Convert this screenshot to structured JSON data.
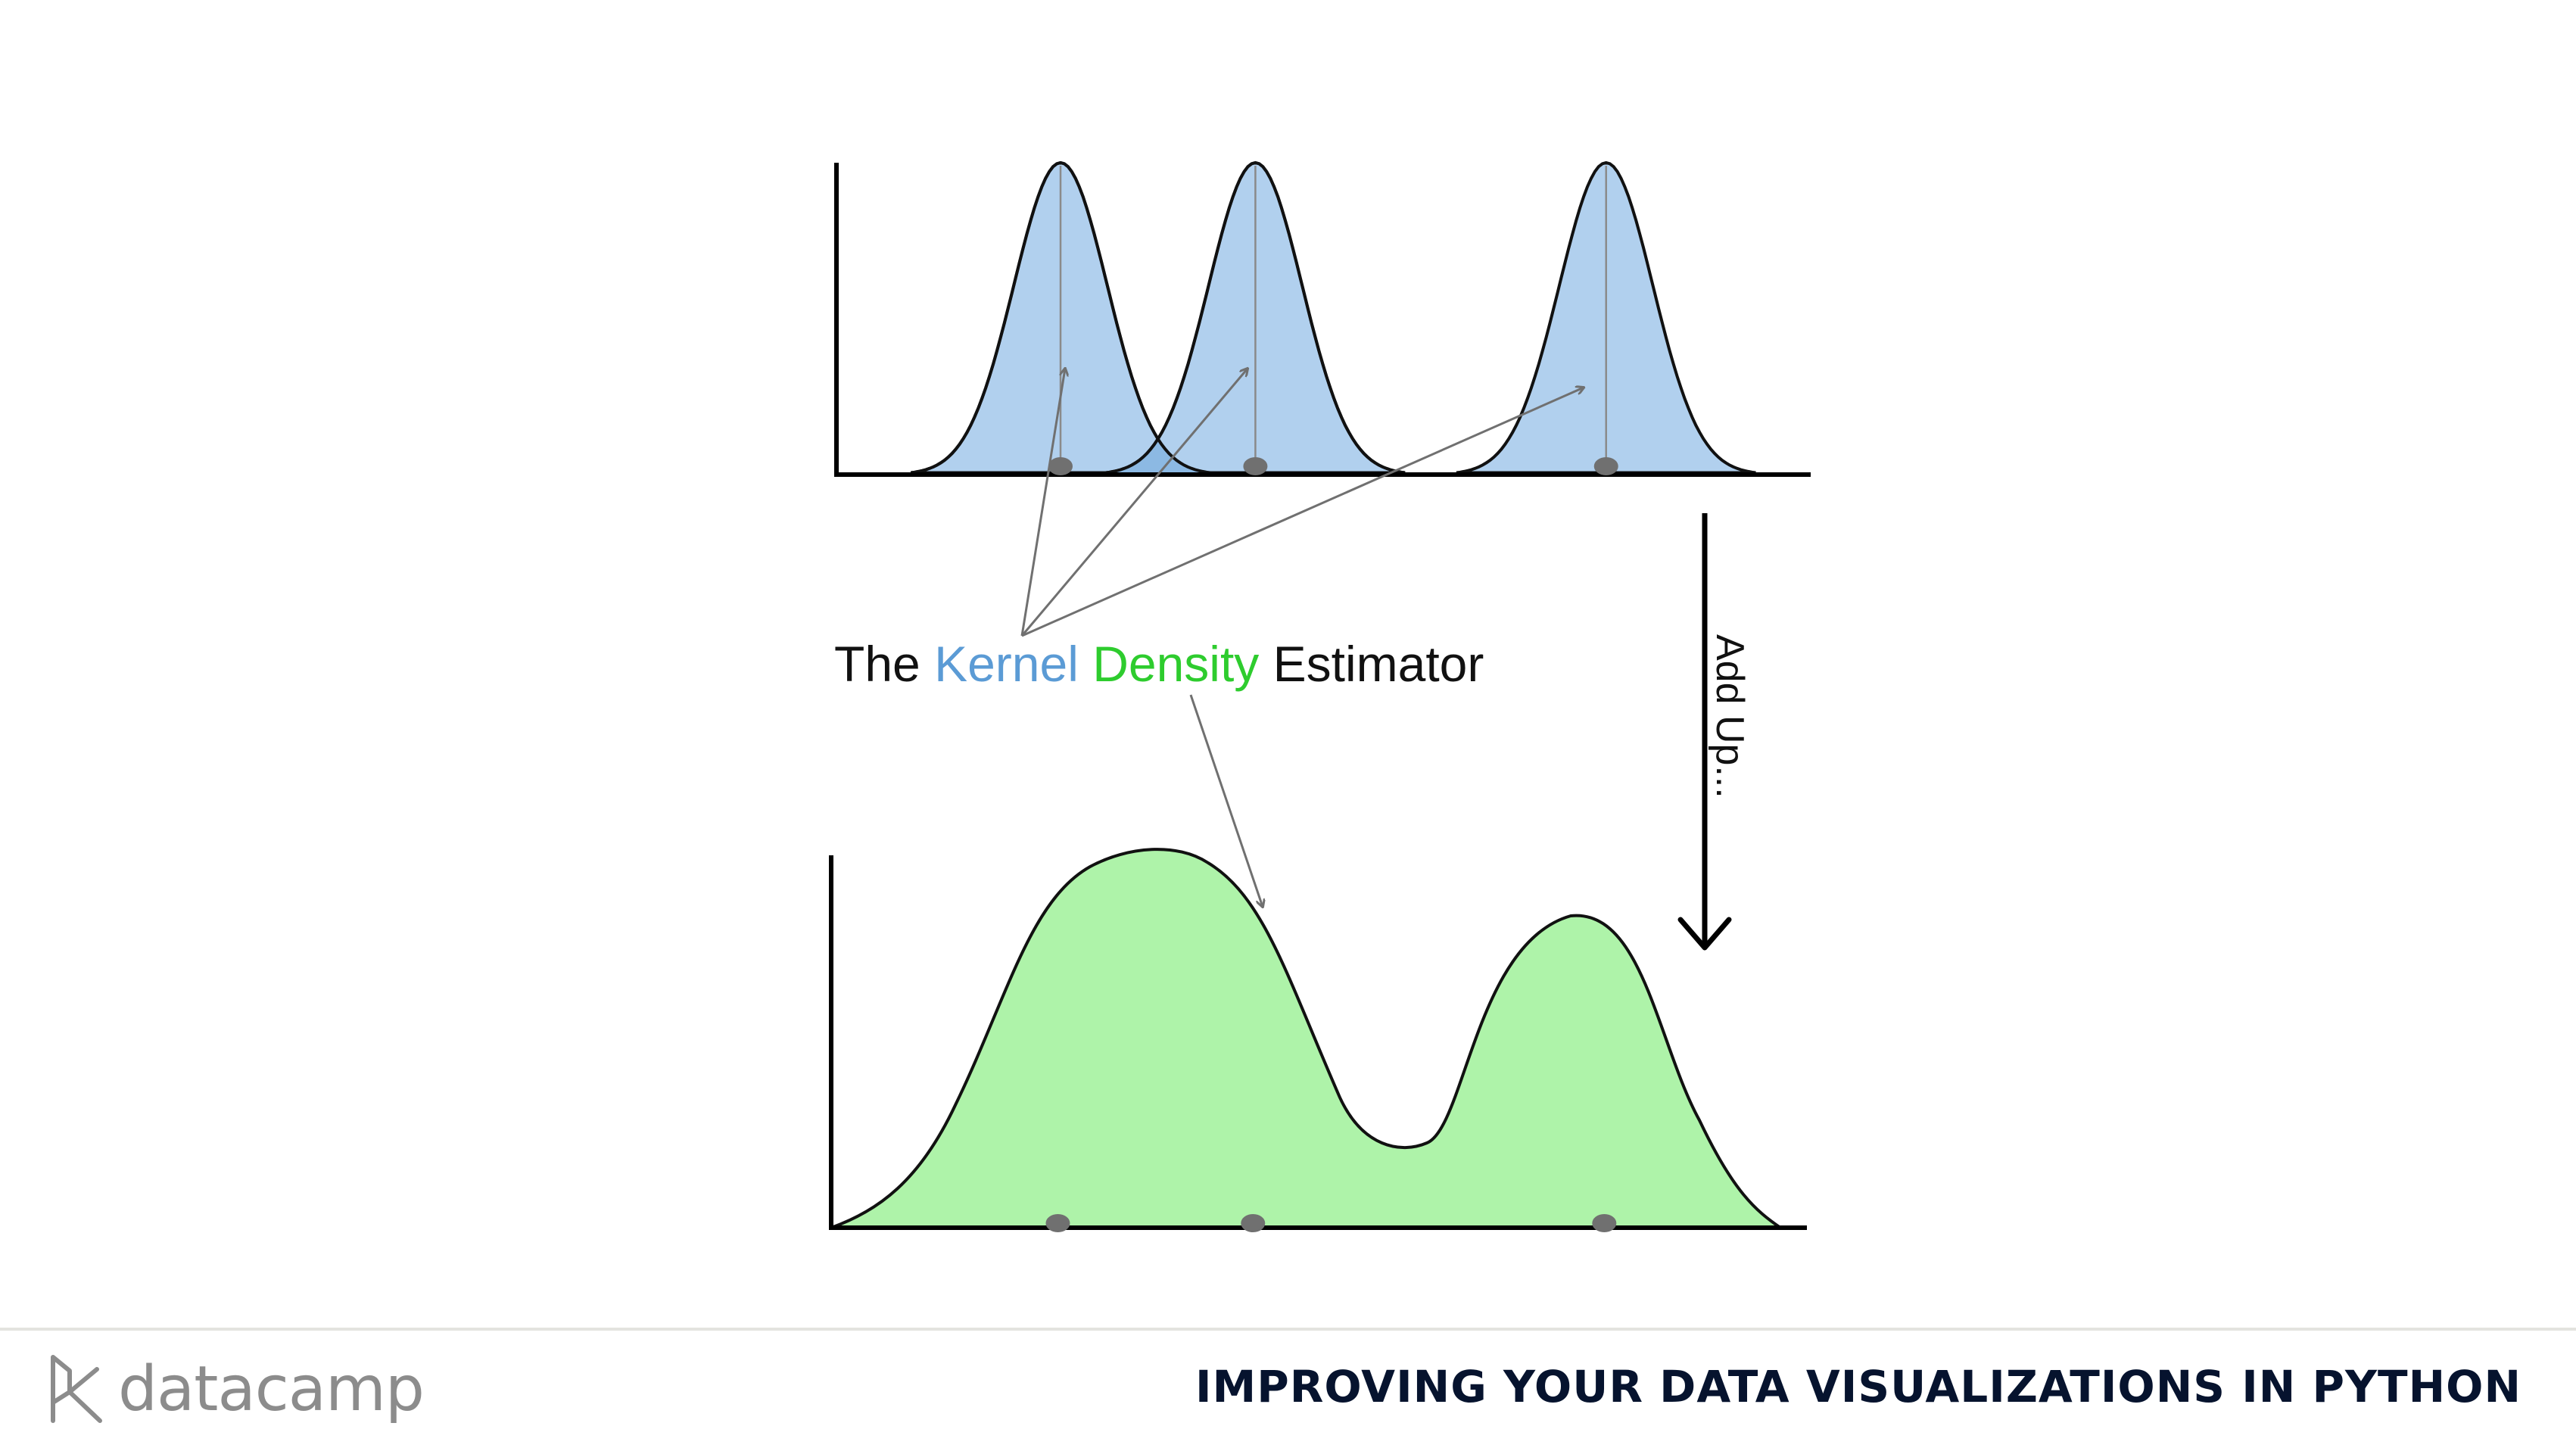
{
  "diagram": {
    "caption": {
      "the": "The",
      "kernel": "Kernel",
      "density": "Density",
      "estimator": "Estimator"
    },
    "arrow_label": "Add Up...",
    "kernel_centers": [
      0.23,
      0.43,
      0.79
    ],
    "colors": {
      "kernel_fill": "#b1d0ee",
      "kernel_overlap": "#8cb9e3",
      "density_fill": "#aef3a9",
      "kernel_text": "#5b9bd5",
      "density_text": "#2ecc2e",
      "dot": "#707070"
    }
  },
  "footer": {
    "brand": "datacamp",
    "course_title": "IMPROVING YOUR DATA VISUALIZATIONS IN PYTHON"
  }
}
